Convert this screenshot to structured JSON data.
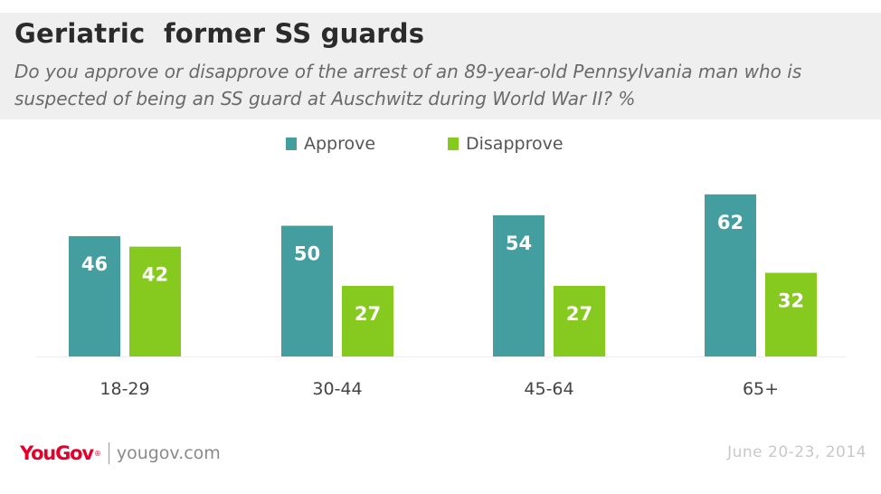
{
  "header": {
    "title": "Geriatric  former SS guards",
    "subtitle": "Do you approve or disapprove of the arrest of an 89-year-old Pennsylvania man who is suspected of being an SS guard at Auschwitz during World War II? %"
  },
  "legend": {
    "approve_label": "Approve",
    "disapprove_label": "Disapprove"
  },
  "colors": {
    "approve": "#449d9f",
    "disapprove": "#86c91f",
    "value_label": "#ffffff",
    "axis": "#eeeeee"
  },
  "chart_data": {
    "type": "bar",
    "categories": [
      "18-29",
      "30-44",
      "45-64",
      "65+"
    ],
    "series": [
      {
        "name": "Approve",
        "values": [
          46,
          50,
          54,
          62
        ]
      },
      {
        "name": "Disapprove",
        "values": [
          42,
          27,
          27,
          32
        ]
      }
    ],
    "title": "Geriatric  former SS guards",
    "xlabel": "",
    "ylabel": "",
    "ylim": [
      0,
      62
    ],
    "grid": false,
    "legend": "top"
  },
  "footer": {
    "logo_you": "You",
    "logo_gov": "Gov",
    "logo_mark": "®",
    "url": "yougov.com",
    "date": "June 20-23, 2014"
  }
}
